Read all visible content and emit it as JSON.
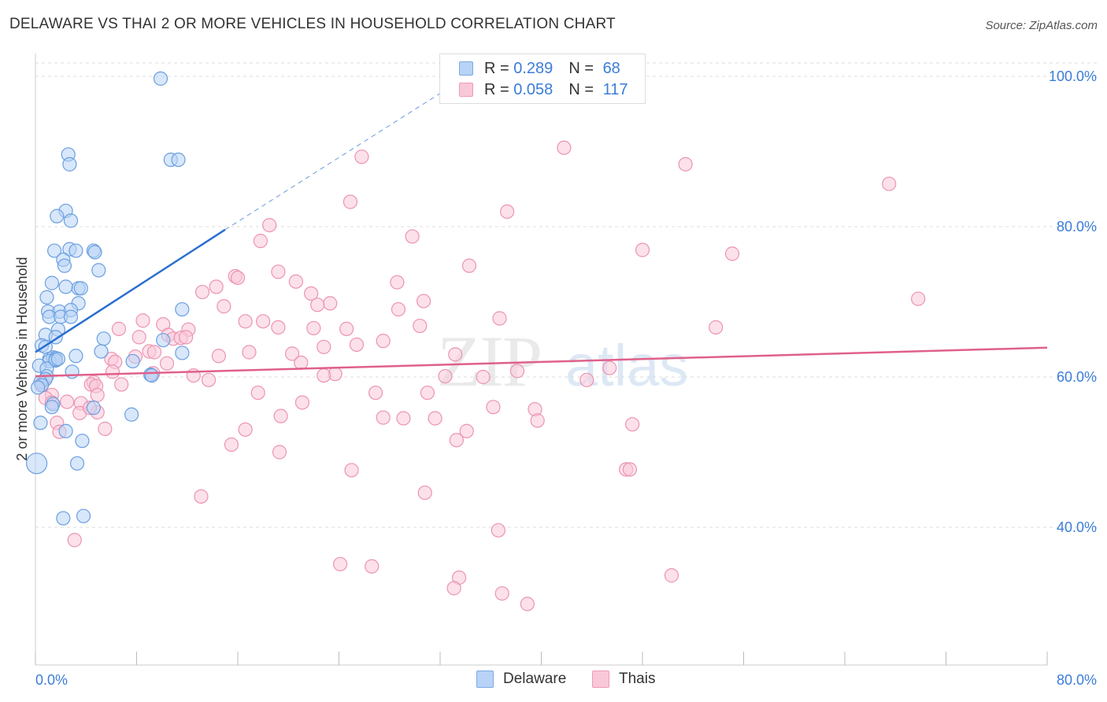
{
  "header": {
    "title": "DELAWARE VS THAI 2 OR MORE VEHICLES IN HOUSEHOLD CORRELATION CHART",
    "source": "Source: ZipAtlas.com"
  },
  "watermark": {
    "zip": "ZIP",
    "atlas": "atlas"
  },
  "legend": {
    "series": [
      {
        "name": "Delaware",
        "r_label": "R =",
        "r_value": "0.289",
        "n_label": "N =",
        "n_value": "68"
      },
      {
        "name": "Thais",
        "r_label": "R =",
        "r_value": "0.058",
        "n_label": "N =",
        "n_value": "117"
      }
    ]
  },
  "colors": {
    "delaware_fill": "#b8d3f5",
    "delaware_stroke": "#6a9fe0",
    "delaware_line": "#2a6fcf",
    "thais_fill": "#f9c8d8",
    "thais_stroke": "#ec94b1",
    "thais_line": "#e0608a",
    "axis_label": "#3b7dd8",
    "grid": "#dddddd"
  },
  "chart_data": {
    "type": "scatter",
    "title": "DELAWARE VS THAI 2 OR MORE VEHICLES IN HOUSEHOLD CORRELATION CHART",
    "xlabel": "",
    "ylabel": "2 or more Vehicles in Household",
    "xlim": [
      0,
      80
    ],
    "ylim": [
      20,
      102
    ],
    "x_tick_labels": [
      {
        "value": 0,
        "label": "0.0%"
      },
      {
        "value": 80,
        "label": "80.0%"
      }
    ],
    "y_tick_labels": [
      {
        "value": 40,
        "label": "40.0%"
      },
      {
        "value": 60,
        "label": "60.0%"
      },
      {
        "value": 80,
        "label": "80.0%"
      },
      {
        "value": 100,
        "label": "100.0%"
      }
    ],
    "grid": true,
    "series": [
      {
        "name": "Delaware",
        "trend": {
          "x": [
            0,
            15
          ],
          "y": [
            63.3,
            79.6
          ],
          "extended_to": [
            33,
            98.8
          ]
        },
        "points": [
          [
            9.9,
            99.7
          ],
          [
            2.6,
            89.6
          ],
          [
            2.7,
            88.3
          ],
          [
            10.7,
            88.9
          ],
          [
            11.3,
            88.9
          ],
          [
            2.4,
            82.1
          ],
          [
            1.7,
            81.4
          ],
          [
            2.8,
            80.8
          ],
          [
            1.5,
            76.8
          ],
          [
            2.7,
            77.0
          ],
          [
            3.2,
            76.8
          ],
          [
            4.6,
            76.8
          ],
          [
            4.7,
            76.6
          ],
          [
            2.2,
            75.6
          ],
          [
            2.3,
            74.8
          ],
          [
            5.0,
            74.2
          ],
          [
            1.3,
            72.5
          ],
          [
            3.4,
            71.8
          ],
          [
            2.4,
            72.0
          ],
          [
            3.6,
            71.8
          ],
          [
            0.9,
            70.6
          ],
          [
            3.4,
            69.8
          ],
          [
            11.6,
            69.0
          ],
          [
            1.0,
            68.7
          ],
          [
            1.9,
            68.7
          ],
          [
            2.8,
            68.9
          ],
          [
            1.1,
            68.0
          ],
          [
            2.0,
            68.0
          ],
          [
            2.8,
            68.0
          ],
          [
            1.8,
            66.3
          ],
          [
            0.8,
            65.6
          ],
          [
            1.6,
            65.3
          ],
          [
            5.4,
            65.1
          ],
          [
            10.1,
            64.9
          ],
          [
            0.5,
            64.2
          ],
          [
            0.8,
            64.0
          ],
          [
            5.2,
            63.4
          ],
          [
            11.6,
            63.2
          ],
          [
            3.2,
            62.8
          ],
          [
            1.1,
            62.4
          ],
          [
            1.4,
            62.6
          ],
          [
            1.6,
            62.5
          ],
          [
            1.6,
            62.2
          ],
          [
            1.1,
            62.1
          ],
          [
            7.7,
            62.1
          ],
          [
            0.3,
            61.5
          ],
          [
            0.9,
            61.1
          ],
          [
            2.9,
            60.7
          ],
          [
            9.1,
            60.3
          ],
          [
            9.2,
            60.2
          ],
          [
            0.9,
            60.1
          ],
          [
            0.8,
            59.7
          ],
          [
            0.4,
            59.3
          ],
          [
            0.5,
            58.9
          ],
          [
            0.2,
            58.6
          ],
          [
            1.4,
            56.4
          ],
          [
            1.3,
            56.0
          ],
          [
            4.6,
            55.9
          ],
          [
            7.6,
            55.0
          ],
          [
            0.4,
            53.9
          ],
          [
            2.4,
            52.8
          ],
          [
            3.7,
            51.5
          ],
          [
            3.3,
            48.5
          ],
          [
            0.1,
            48.5
          ],
          [
            3.8,
            41.5
          ],
          [
            2.2,
            41.2
          ],
          [
            1.6,
            62.3
          ],
          [
            1.8,
            62.4
          ]
        ]
      },
      {
        "name": "Thais",
        "trend": {
          "x": [
            0,
            80
          ],
          "y": [
            60.1,
            63.9
          ]
        },
        "points": [
          [
            41.8,
            90.5
          ],
          [
            51.4,
            88.3
          ],
          [
            25.8,
            89.3
          ],
          [
            67.5,
            85.7
          ],
          [
            24.9,
            83.3
          ],
          [
            37.3,
            82.0
          ],
          [
            18.5,
            80.2
          ],
          [
            29.8,
            78.7
          ],
          [
            17.8,
            78.1
          ],
          [
            48.0,
            76.9
          ],
          [
            55.1,
            76.4
          ],
          [
            34.3,
            74.8
          ],
          [
            19.2,
            74.0
          ],
          [
            15.8,
            73.4
          ],
          [
            16.0,
            73.2
          ],
          [
            28.6,
            72.6
          ],
          [
            20.6,
            72.7
          ],
          [
            14.3,
            72.0
          ],
          [
            13.2,
            71.3
          ],
          [
            21.8,
            71.1
          ],
          [
            30.7,
            70.1
          ],
          [
            69.8,
            70.4
          ],
          [
            23.3,
            69.8
          ],
          [
            22.3,
            69.6
          ],
          [
            14.9,
            69.4
          ],
          [
            28.7,
            69.0
          ],
          [
            36.7,
            67.8
          ],
          [
            8.5,
            67.5
          ],
          [
            16.6,
            67.4
          ],
          [
            18.0,
            67.4
          ],
          [
            10.1,
            67.0
          ],
          [
            19.2,
            66.6
          ],
          [
            22.0,
            66.5
          ],
          [
            6.6,
            66.4
          ],
          [
            30.4,
            66.8
          ],
          [
            53.8,
            66.6
          ],
          [
            12.1,
            66.3
          ],
          [
            24.6,
            66.4
          ],
          [
            10.5,
            65.6
          ],
          [
            8.2,
            65.3
          ],
          [
            10.9,
            65.1
          ],
          [
            11.5,
            65.2
          ],
          [
            11.9,
            65.3
          ],
          [
            27.5,
            64.8
          ],
          [
            25.4,
            64.3
          ],
          [
            22.8,
            64.0
          ],
          [
            9.0,
            63.4
          ],
          [
            9.4,
            63.3
          ],
          [
            16.9,
            63.3
          ],
          [
            20.3,
            63.1
          ],
          [
            33.2,
            63.0
          ],
          [
            14.5,
            62.8
          ],
          [
            7.9,
            62.7
          ],
          [
            6.0,
            62.4
          ],
          [
            6.3,
            62.0
          ],
          [
            21.0,
            61.9
          ],
          [
            10.4,
            61.8
          ],
          [
            45.4,
            61.2
          ],
          [
            38.1,
            60.8
          ],
          [
            9.3,
            60.5
          ],
          [
            23.7,
            60.4
          ],
          [
            12.5,
            60.2
          ],
          [
            32.4,
            60.1
          ],
          [
            35.4,
            60.0
          ],
          [
            22.8,
            60.2
          ],
          [
            13.7,
            59.6
          ],
          [
            4.6,
            59.3
          ],
          [
            43.6,
            59.6
          ],
          [
            4.4,
            59.0
          ],
          [
            6.8,
            59.0
          ],
          [
            4.8,
            58.8
          ],
          [
            0.6,
            59.3
          ],
          [
            0.5,
            59.0
          ],
          [
            17.6,
            57.9
          ],
          [
            26.9,
            57.9
          ],
          [
            31.0,
            57.9
          ],
          [
            4.9,
            57.6
          ],
          [
            1.3,
            57.6
          ],
          [
            0.8,
            57.2
          ],
          [
            1.3,
            56.6
          ],
          [
            2.5,
            56.7
          ],
          [
            3.6,
            56.5
          ],
          [
            21.1,
            56.6
          ],
          [
            36.2,
            56.0
          ],
          [
            39.5,
            55.7
          ],
          [
            3.5,
            55.2
          ],
          [
            4.9,
            55.3
          ],
          [
            19.4,
            54.8
          ],
          [
            27.5,
            54.6
          ],
          [
            29.1,
            54.5
          ],
          [
            31.6,
            54.5
          ],
          [
            39.7,
            54.2
          ],
          [
            47.2,
            53.7
          ],
          [
            1.7,
            53.9
          ],
          [
            5.5,
            53.1
          ],
          [
            16.6,
            53.0
          ],
          [
            34.1,
            52.8
          ],
          [
            1.9,
            52.7
          ],
          [
            33.3,
            51.6
          ],
          [
            15.5,
            51.0
          ],
          [
            19.3,
            50.0
          ],
          [
            46.7,
            47.7
          ],
          [
            47.0,
            47.7
          ],
          [
            25.0,
            47.6
          ],
          [
            30.8,
            44.6
          ],
          [
            13.1,
            44.1
          ],
          [
            36.6,
            39.6
          ],
          [
            3.1,
            38.3
          ],
          [
            24.1,
            35.1
          ],
          [
            26.6,
            34.8
          ],
          [
            33.5,
            33.3
          ],
          [
            50.3,
            33.6
          ],
          [
            33.1,
            31.9
          ],
          [
            36.9,
            31.2
          ],
          [
            38.9,
            29.8
          ],
          [
            4.3,
            55.9
          ],
          [
            6.1,
            60.7
          ]
        ]
      }
    ]
  }
}
